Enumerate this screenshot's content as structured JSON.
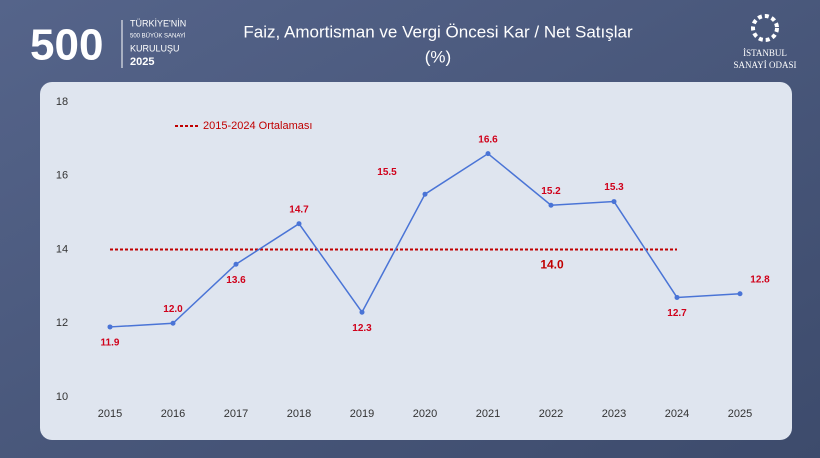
{
  "slide": {
    "logo_number": "500",
    "logo_lines": [
      "TÜRKİYE'NİN",
      "500 BÜYÜK SANAYİ",
      "KURULUŞU",
      "2025"
    ],
    "org_lines": [
      "İSTANBUL",
      "SANAYİ ODASI"
    ]
  },
  "chart_data": {
    "type": "line",
    "title": "Faiz, Amortisman ve Vergi Öncesi Kar  / Net Satışlar",
    "subtitle": "(%)",
    "categories": [
      "2015",
      "2016",
      "2017",
      "2018",
      "2019",
      "2020",
      "2021",
      "2022",
      "2023",
      "2024",
      "2025"
    ],
    "series": [
      {
        "name": "Faiz, Amortisman ve Vergi Öncesi Kar / Net Satışlar",
        "color": "#4a74d6",
        "values": [
          11.9,
          12.0,
          13.6,
          14.7,
          12.3,
          15.5,
          16.6,
          15.2,
          15.3,
          12.7,
          12.8
        ],
        "value_labels": [
          "11.9",
          "12.0",
          "13.6",
          "14.7",
          "12.3",
          "15.5",
          "16.6",
          "15.2",
          "15.3",
          "12.7",
          "12.8"
        ],
        "label_color": "#d0021b"
      }
    ],
    "reference_line": {
      "name": "2015-2024 Ortalaması",
      "value": 14.0,
      "value_label": "14.0",
      "color": "#c00000"
    },
    "ylim": [
      10,
      18
    ],
    "yticks": [
      10,
      12,
      14,
      16,
      18
    ],
    "grid": false
  }
}
